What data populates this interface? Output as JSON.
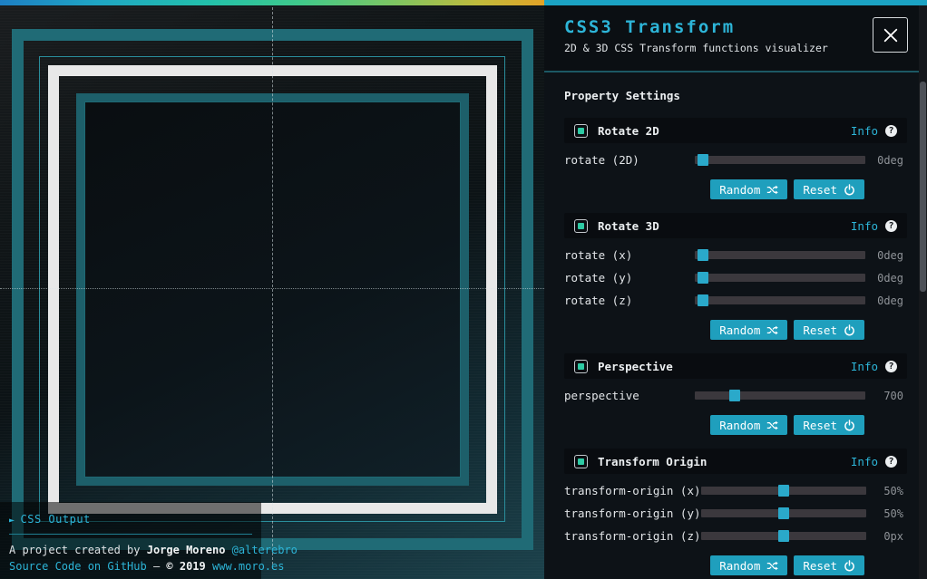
{
  "colors": {
    "accent_cyan": "#2db5d8",
    "button_teal": "#1f9fbd",
    "checkbox_teal": "#2ecaa4",
    "square_teal": "#206b76",
    "square_white": "#e8e8e8",
    "slider_track": "#3b383d",
    "slider_thumb": "#2aa9ca",
    "top_gradient": [
      "#1d7fc4",
      "#1fa6c4",
      "#27c79e",
      "#56c77e",
      "#97c254",
      "#d4b433",
      "#e2a226"
    ]
  },
  "stage": {
    "css_output": {
      "arrow": "►",
      "label": "CSS Output"
    },
    "footer": {
      "line1_prefix": "A project created by ",
      "line1_author": "Jorge Moreno",
      "line1_handle": "@alterebro",
      "line2_source": "Source Code on GitHub",
      "line2_dash": " — ",
      "line2_year": "© 2019",
      "line2_site": "www.moro.es"
    }
  },
  "panel": {
    "title": "CSS3 Transform",
    "subtitle": "2D & 3D CSS Transform functions visualizer",
    "settings_heading": "Property Settings",
    "info_label": "Info",
    "help_glyph": "?",
    "random_label": "Random",
    "reset_label": "Reset",
    "sections": [
      {
        "title": "Rotate 2D",
        "rows": [
          {
            "label": "rotate (2D)",
            "value": "0deg",
            "pos": "1.5%"
          }
        ]
      },
      {
        "title": "Rotate 3D",
        "rows": [
          {
            "label": "rotate (x)",
            "value": "0deg",
            "pos": "1.5%"
          },
          {
            "label": "rotate (y)",
            "value": "0deg",
            "pos": "1.5%"
          },
          {
            "label": "rotate (z)",
            "value": "0deg",
            "pos": "1.5%"
          }
        ]
      },
      {
        "title": "Perspective",
        "rows": [
          {
            "label": "perspective",
            "value": "700",
            "pos": "20%"
          }
        ]
      },
      {
        "title": "Transform Origin",
        "rows": [
          {
            "label": "transform-origin (x)",
            "value": "50%",
            "pos": "47%"
          },
          {
            "label": "transform-origin (y)",
            "value": "50%",
            "pos": "47%"
          },
          {
            "label": "transform-origin (z)",
            "value": "0px",
            "pos": "47%"
          }
        ]
      }
    ]
  }
}
